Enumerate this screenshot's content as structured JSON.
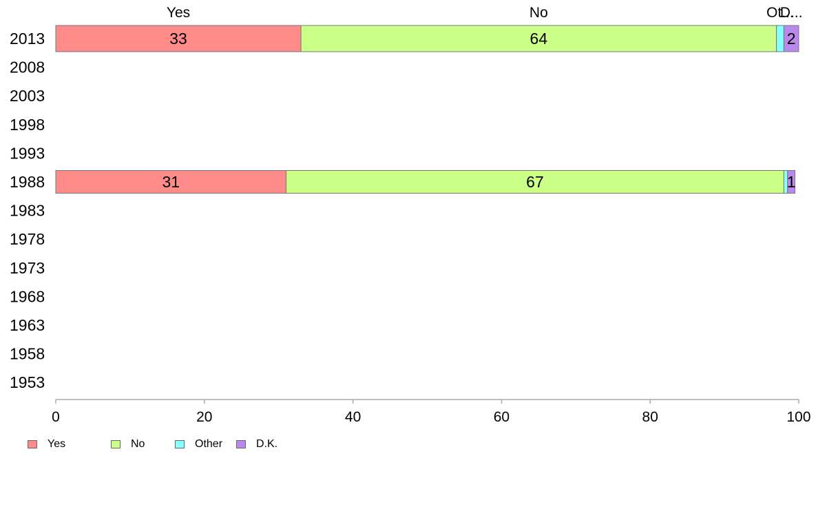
{
  "chart_data": {
    "type": "bar",
    "orientation": "horizontal",
    "stacked": true,
    "categories": [
      "2013",
      "2008",
      "2003",
      "1998",
      "1993",
      "1988",
      "1983",
      "1978",
      "1973",
      "1968",
      "1963",
      "1958",
      "1953"
    ],
    "series": [
      {
        "name": "Yes",
        "color": "#ff8a8a",
        "values": [
          33,
          null,
          null,
          null,
          null,
          31,
          null,
          null,
          null,
          null,
          null,
          null,
          null
        ]
      },
      {
        "name": "No",
        "color": "#ccff88",
        "values": [
          64,
          null,
          null,
          null,
          null,
          67,
          null,
          null,
          null,
          null,
          null,
          null,
          null
        ]
      },
      {
        "name": "Other",
        "color": "#88ffff",
        "values": [
          1,
          null,
          null,
          null,
          null,
          0.5,
          null,
          null,
          null,
          null,
          null,
          null,
          null
        ]
      },
      {
        "name": "D.K.",
        "color": "#bb88ee",
        "values": [
          2,
          null,
          null,
          null,
          null,
          1,
          null,
          null,
          null,
          null,
          null,
          null,
          null
        ]
      }
    ],
    "data_labels": {
      "2013": [
        "33",
        "64",
        "",
        "2"
      ],
      "1988": [
        "31",
        "67",
        "",
        "1"
      ]
    },
    "top_labels": [
      "Yes",
      "No",
      "Ot...",
      "D..."
    ],
    "xlim": [
      0,
      100
    ],
    "xticks": [
      "0",
      "20",
      "40",
      "60",
      "80",
      "100"
    ],
    "grid": false,
    "legend_position": "bottom-left"
  }
}
